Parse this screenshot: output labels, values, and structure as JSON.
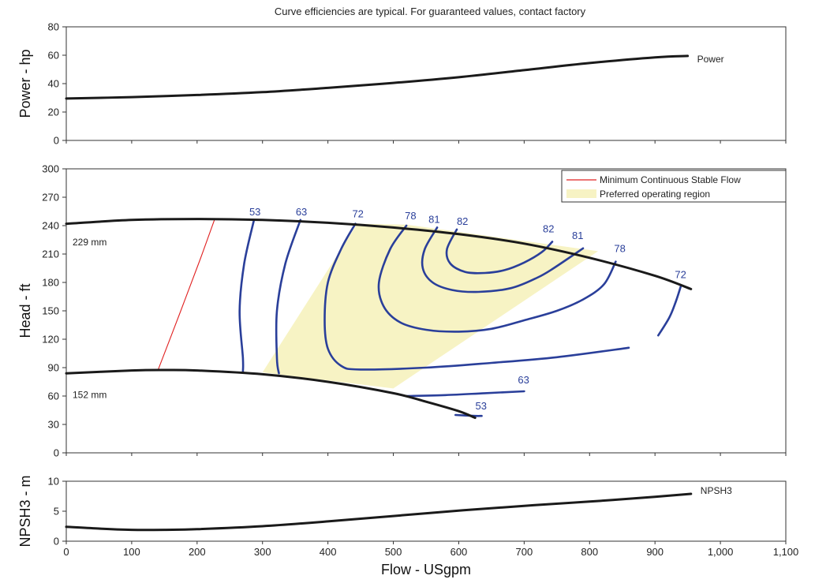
{
  "chart_data": {
    "type": "line",
    "title": "Curve efficiencies are typical. For guaranteed values, contact factory",
    "xlabel": "Flow - USgpm",
    "xlim": [
      0,
      1100
    ],
    "x_ticks": [
      "0",
      "100",
      "200",
      "300",
      "400",
      "500",
      "600",
      "700",
      "800",
      "900",
      "1,000",
      "1,100"
    ],
    "panels": [
      {
        "id": "power",
        "ylabel": "Power - hp",
        "ylim": [
          0,
          80
        ],
        "y_ticks": [
          "0",
          "20",
          "40",
          "60",
          "80"
        ],
        "series": [
          {
            "name": "Power",
            "x": [
              0,
              100,
              200,
              300,
              400,
              500,
              600,
              700,
              800,
              900,
              950
            ],
            "y": [
              29.5,
              30.5,
              32,
              34,
              37,
              40.5,
              44.5,
              49.5,
              54.5,
              58.5,
              59.5
            ]
          }
        ]
      },
      {
        "id": "head",
        "ylabel": "Head - ft",
        "ylim": [
          0,
          300
        ],
        "y_ticks": [
          "0",
          "30",
          "60",
          "90",
          "120",
          "150",
          "180",
          "210",
          "240",
          "270",
          "300"
        ],
        "legend": {
          "position": "top-right",
          "entries": [
            {
              "name": "Minimum Continuous Stable Flow",
              "color": "#e02020"
            },
            {
              "name": "Preferred operating region",
              "color": "#f7f3c4"
            }
          ]
        },
        "diameter_curves": [
          {
            "name": "229 mm",
            "x": [
              0,
              100,
              200,
              300,
              400,
              500,
              600,
              700,
              800,
              900,
              955
            ],
            "y": [
              242,
              246,
              247,
              246,
              243,
              238,
              231,
              221,
              206,
              187,
              173
            ]
          },
          {
            "name": "152 mm",
            "x": [
              0,
              100,
              150,
              200,
              300,
              400,
              500,
              550,
              600,
              625
            ],
            "y": [
              84,
              87,
              87.5,
              87,
              83,
              75,
              63,
              54,
              44,
              37
            ]
          }
        ],
        "min_stable_flow": {
          "x": [
            140,
            175,
            205,
            227
          ],
          "y": [
            87,
            150,
            205,
            247
          ]
        },
        "preferred_region": {
          "x": [
            445,
            520,
            813,
            500,
            300
          ],
          "y": [
            242,
            241,
            213,
            68,
            85
          ]
        },
        "efficiency_contours": [
          {
            "label": "53",
            "x": [
              287,
              272,
              265,
              270,
              270
            ],
            "y": [
              246,
              200,
              150,
              100,
              86
            ]
          },
          {
            "label": "63",
            "x": [
              358,
              335,
              322,
              322,
              325
            ],
            "y": [
              246,
              200,
              150,
              100,
              84
            ]
          },
          {
            "label": "72",
            "x": [
              442,
              420,
              400,
              395,
              400,
              420,
              450,
              550,
              650,
              750,
              860
            ],
            "y": [
              242,
              215,
              180,
              140,
              110,
              92,
              88,
              90,
              95,
              101,
              111
            ]
          },
          {
            "label": "78",
            "x": [
              520,
              495,
              478,
              485,
              510,
              550,
              600,
              650,
              700,
              750,
              790,
              822,
              840
            ],
            "y": [
              240,
              215,
              180,
              155,
              138,
              130,
              128,
              131,
              140,
              150,
              162,
              178,
              202
            ]
          },
          {
            "label": "81",
            "x": [
              567,
              548,
              545,
              560,
              590,
              630,
              680,
              720,
              745,
              790
            ],
            "y": [
              238,
              215,
              195,
              180,
              172,
              170,
              174,
              185,
              195,
              216
            ]
          },
          {
            "label": "82",
            "x": [
              597,
              582,
              587,
              610,
              640,
              670,
              700,
              727,
              743
            ],
            "y": [
              236,
              215,
              200,
              191,
              190,
              193,
              201,
              212,
              223
            ]
          },
          {
            "label": "72",
            "x": [
              940,
              932,
              922,
              905
            ],
            "y": [
              177,
              160,
              143,
              124
            ]
          },
          {
            "label": "63",
            "x": [
              520,
              580,
              640,
              700
            ],
            "y": [
              60,
              61,
              63,
              65
            ]
          },
          {
            "label": "53",
            "x": [
              595,
              625,
              635
            ],
            "y": [
              40,
              39,
              39
            ]
          }
        ],
        "labels": [
          "53",
          "63",
          "72",
          "78",
          "81",
          "82",
          "82",
          "81",
          "78",
          "72",
          "63",
          "53"
        ]
      },
      {
        "id": "npsh",
        "ylabel": "NPSH3 - m",
        "ylim": [
          0,
          10
        ],
        "y_ticks": [
          "0",
          "5",
          "10"
        ],
        "series": [
          {
            "name": "NPSH3",
            "x": [
              0,
              50,
              100,
              150,
              200,
              300,
              400,
              500,
              600,
              700,
              800,
              900,
              955
            ],
            "y": [
              2.4,
              2.1,
              1.9,
              1.9,
              2.0,
              2.5,
              3.3,
              4.2,
              5.1,
              5.9,
              6.6,
              7.4,
              7.9
            ]
          }
        ]
      }
    ]
  }
}
